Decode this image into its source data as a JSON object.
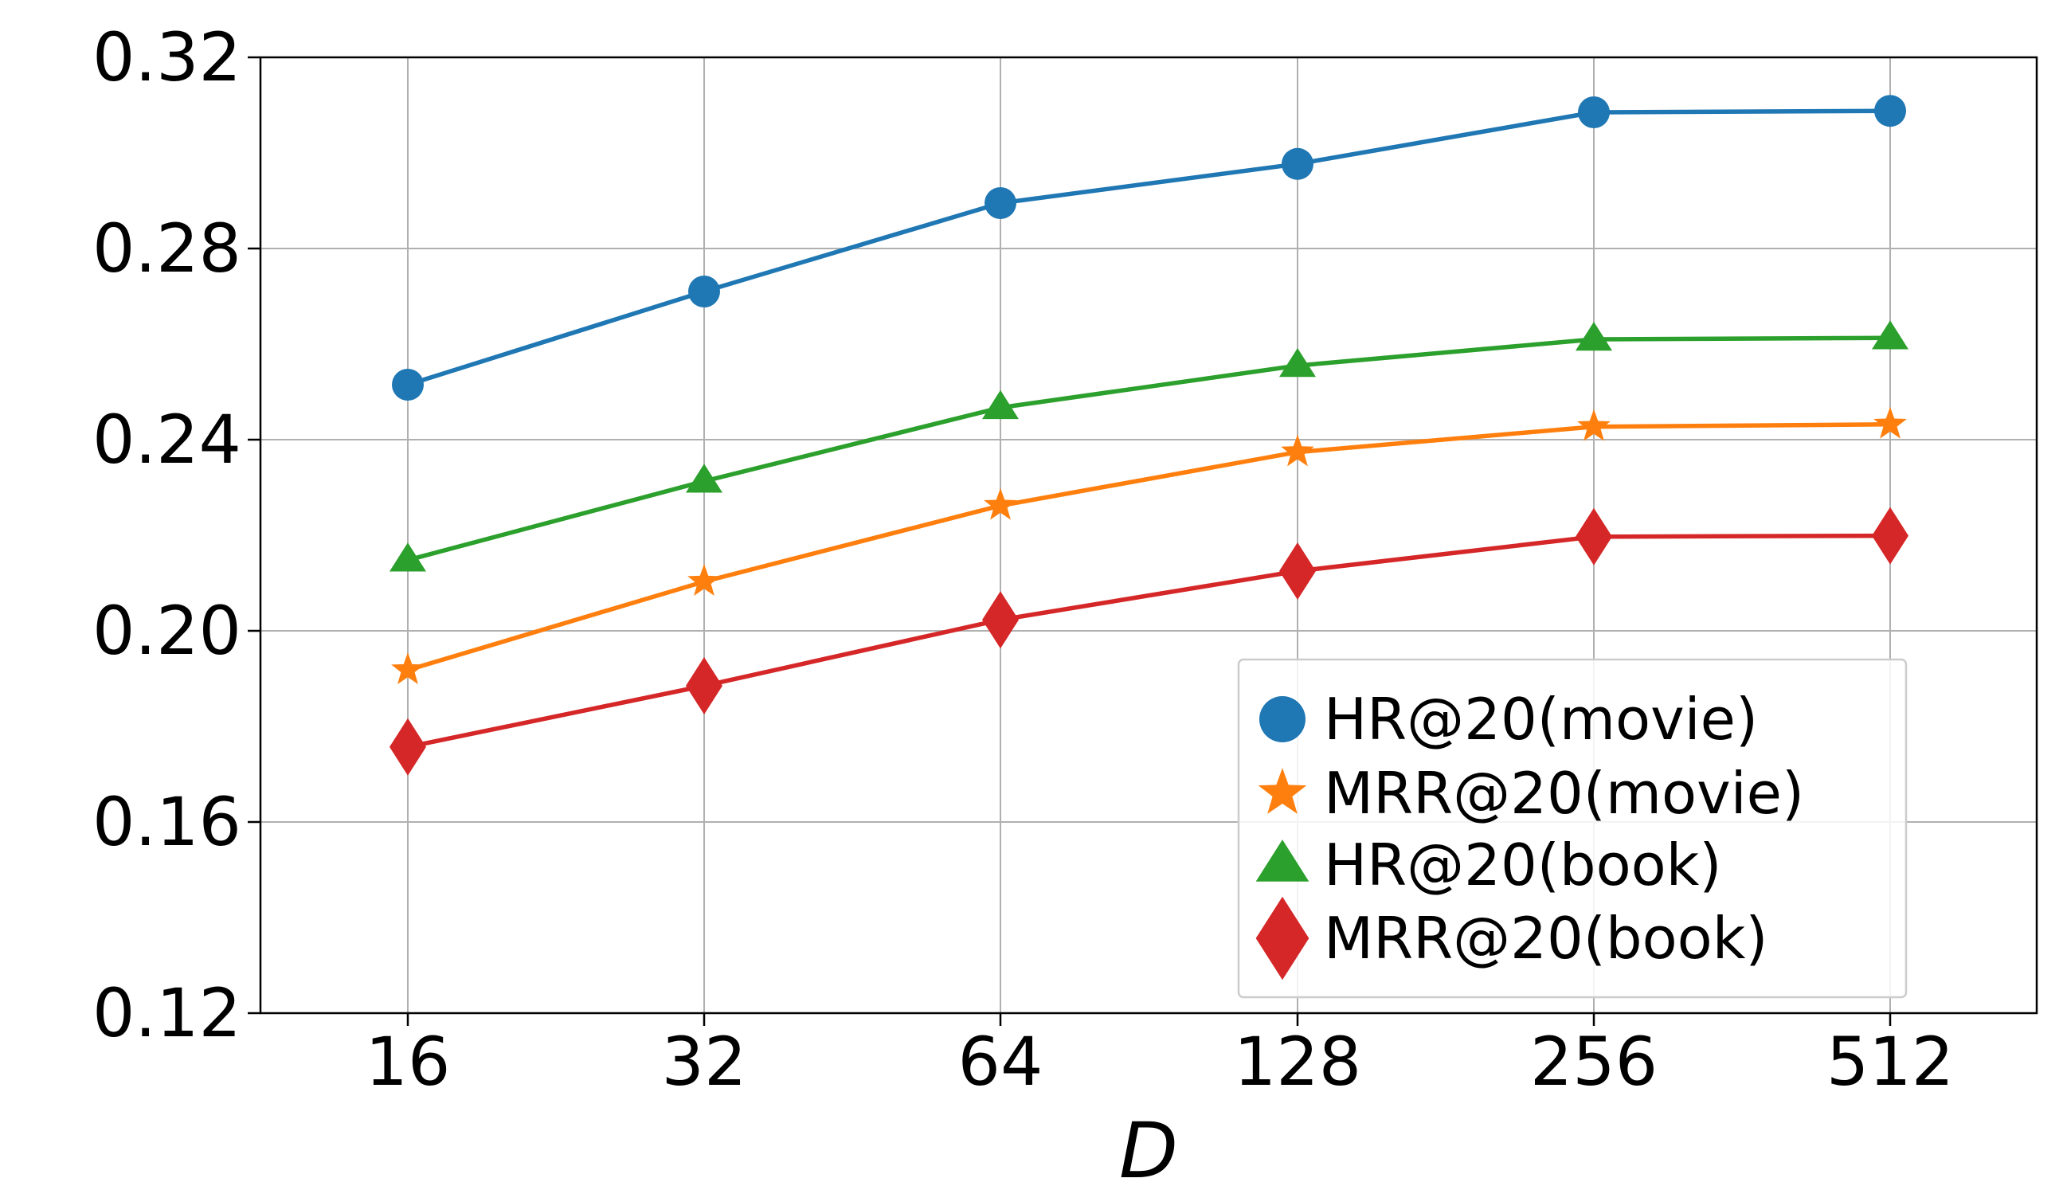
{
  "chart_data": {
    "type": "line",
    "title": "",
    "xlabel": "D",
    "ylabel": "",
    "categories": [
      "16",
      "32",
      "64",
      "128",
      "256",
      "512"
    ],
    "ylim": [
      0.12,
      0.32
    ],
    "yticks": [
      "0.12",
      "0.16",
      "0.20",
      "0.24",
      "0.28",
      "0.32"
    ],
    "grid": true,
    "legend_position": "lower-right",
    "series": [
      {
        "name": "HR@20(movie)",
        "color": "#1f77b4",
        "marker": "circle",
        "values": [
          0.2515,
          0.271,
          0.2895,
          0.2977,
          0.3085,
          0.3088
        ]
      },
      {
        "name": "MRR@20(movie)",
        "color": "#ff7f0e",
        "marker": "star",
        "values": [
          0.1918,
          0.2103,
          0.2262,
          0.2374,
          0.2427,
          0.2432
        ]
      },
      {
        "name": "HR@20(book)",
        "color": "#2ca02c",
        "marker": "triangle",
        "values": [
          0.2148,
          0.2313,
          0.2467,
          0.2555,
          0.261,
          0.2613
        ]
      },
      {
        "name": "MRR@20(book)",
        "color": "#d62728",
        "marker": "diamond",
        "values": [
          0.1757,
          0.1885,
          0.2023,
          0.2125,
          0.2197,
          0.2199
        ]
      }
    ]
  }
}
